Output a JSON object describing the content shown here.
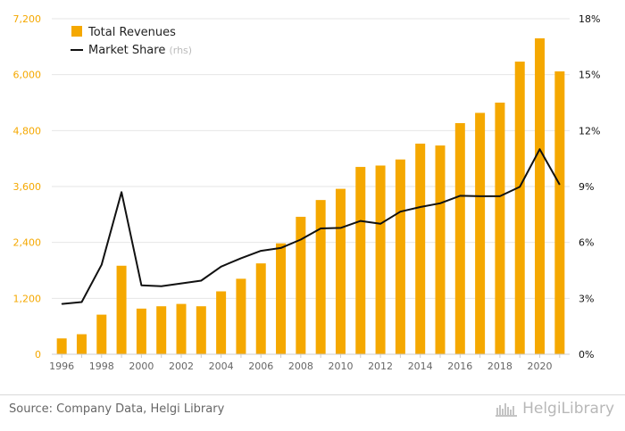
{
  "chart_data": {
    "type": "bar",
    "categories": [
      "1996",
      "1997",
      "1998",
      "1999",
      "2000",
      "2001",
      "2002",
      "2003",
      "2004",
      "2005",
      "2006",
      "2007",
      "2008",
      "2009",
      "2010",
      "2011",
      "2012",
      "2013",
      "2014",
      "2015",
      "2016",
      "2017",
      "2018",
      "2019",
      "2020",
      "2021"
    ],
    "x_tick_labels": [
      "1996",
      "1998",
      "2000",
      "2002",
      "2004",
      "2006",
      "2008",
      "2010",
      "2012",
      "2014",
      "2016",
      "2018",
      "2020"
    ],
    "series": [
      {
        "name": "Total Revenues",
        "type": "bar",
        "axis": "left",
        "color": "#f5a800",
        "values": [
          340,
          430,
          850,
          1900,
          980,
          1030,
          1080,
          1030,
          1350,
          1620,
          1950,
          2380,
          2950,
          3310,
          3550,
          4020,
          4050,
          4180,
          4520,
          4480,
          4960,
          5180,
          5400,
          6280,
          6780,
          6070
        ]
      },
      {
        "name": "Market Share",
        "name_suffix": "(rhs)",
        "type": "line",
        "axis": "right",
        "color": "#111111",
        "values": [
          2.7,
          2.8,
          4.8,
          8.7,
          3.7,
          3.65,
          3.8,
          3.95,
          4.7,
          5.15,
          5.55,
          5.7,
          6.15,
          6.75,
          6.78,
          7.15,
          7.0,
          7.65,
          7.9,
          8.1,
          8.5,
          8.48,
          8.48,
          8.98,
          11.0,
          9.1
        ]
      }
    ],
    "y_left": {
      "min": 0,
      "max": 7200,
      "ticks": [
        0,
        1200,
        2400,
        3600,
        4800,
        6000,
        7200
      ],
      "tick_labels": [
        "0",
        "1,200",
        "2,400",
        "3,600",
        "4,800",
        "6,000",
        "7,200"
      ],
      "color": "#f5a800"
    },
    "y_right": {
      "min": 0,
      "max": 18,
      "ticks": [
        0,
        3,
        6,
        9,
        12,
        15,
        18
      ],
      "tick_labels": [
        "0%",
        "3%",
        "6%",
        "9%",
        "12%",
        "15%",
        "18%"
      ],
      "color": "#111111"
    },
    "grid": true,
    "legend_position": "top-left"
  },
  "footer": {
    "source": "Source: Company Data, Helgi Library",
    "brand_icon": "helgi-logo-icon",
    "brand": "HelgiLibrary"
  }
}
